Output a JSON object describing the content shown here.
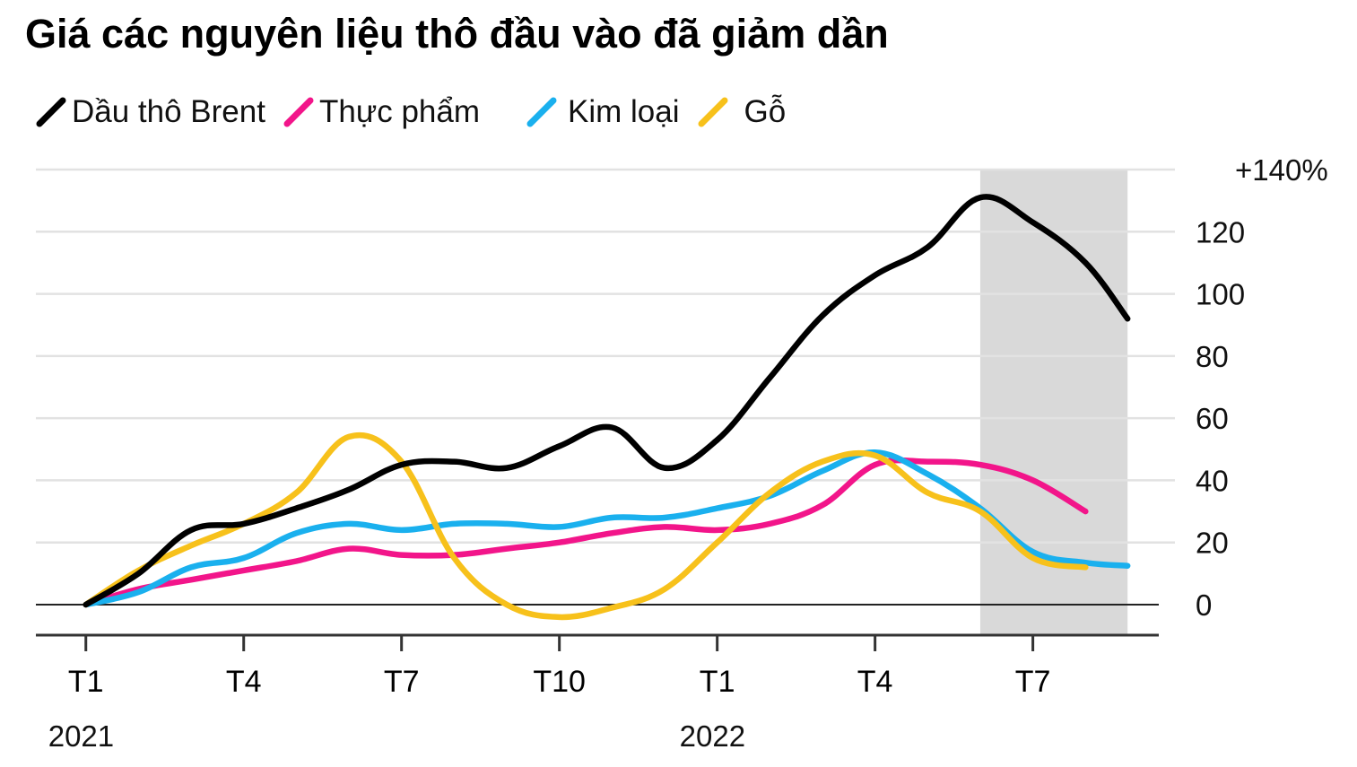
{
  "title": "Giá các nguyên liệu thô đầu vào đã giảm dần",
  "chart_data": {
    "type": "line",
    "title": "Giá các nguyên liệu thô đầu vào đã giảm dần",
    "xlabel": "",
    "ylabel": "",
    "x_unit": "month index (0 = T1 2021)",
    "x_ticks": [
      {
        "x": 0,
        "label": "T1"
      },
      {
        "x": 3,
        "label": "T4"
      },
      {
        "x": 6,
        "label": "T7"
      },
      {
        "x": 9,
        "label": "T10"
      },
      {
        "x": 12,
        "label": "T1"
      },
      {
        "x": 15,
        "label": "T4"
      },
      {
        "x": 18,
        "label": "T7"
      }
    ],
    "year_labels": [
      {
        "x": 0,
        "label": "2021"
      },
      {
        "x": 12,
        "label": "2022"
      }
    ],
    "y_ticks": [
      {
        "v": 140,
        "label": "+140%"
      },
      {
        "v": 120,
        "label": "120"
      },
      {
        "v": 100,
        "label": "100"
      },
      {
        "v": 80,
        "label": "80"
      },
      {
        "v": 60,
        "label": "60"
      },
      {
        "v": 40,
        "label": "40"
      },
      {
        "v": 20,
        "label": "20"
      },
      {
        "v": 0,
        "label": "0"
      }
    ],
    "ylim": [
      -10,
      140
    ],
    "xlim": [
      -0.95,
      20.7
    ],
    "grid": true,
    "legend": "top-left",
    "shaded_region": {
      "x0": 17,
      "x1": 19.8,
      "color": "#d9d9d9"
    },
    "series": [
      {
        "name": "Dầu thô Brent",
        "color": "#000000",
        "points": [
          [
            0,
            0
          ],
          [
            1,
            10
          ],
          [
            2,
            24
          ],
          [
            3,
            26
          ],
          [
            4,
            31
          ],
          [
            5,
            37
          ],
          [
            6,
            45
          ],
          [
            7,
            46
          ],
          [
            8,
            44
          ],
          [
            9,
            51
          ],
          [
            10,
            57
          ],
          [
            11,
            44
          ],
          [
            12,
            53
          ],
          [
            13,
            73
          ],
          [
            14,
            93
          ],
          [
            15,
            106
          ],
          [
            16,
            115
          ],
          [
            17,
            131
          ],
          [
            18,
            123
          ],
          [
            19,
            110
          ],
          [
            19.8,
            92
          ]
        ]
      },
      {
        "name": "Thực phẩm",
        "color": "#f2158a",
        "points": [
          [
            0,
            0
          ],
          [
            1,
            5
          ],
          [
            2,
            8
          ],
          [
            3,
            11
          ],
          [
            4,
            14
          ],
          [
            5,
            18
          ],
          [
            6,
            16
          ],
          [
            7,
            16
          ],
          [
            8,
            18
          ],
          [
            9,
            20
          ],
          [
            10,
            23
          ],
          [
            11,
            25
          ],
          [
            12,
            24
          ],
          [
            13,
            26
          ],
          [
            14,
            32
          ],
          [
            15,
            45
          ],
          [
            16,
            46
          ],
          [
            17,
            45
          ],
          [
            18,
            40
          ],
          [
            19,
            30
          ]
        ]
      },
      {
        "name": "Kim loại",
        "color": "#1ab0ee",
        "points": [
          [
            0,
            0
          ],
          [
            1,
            4
          ],
          [
            2,
            12
          ],
          [
            3,
            15
          ],
          [
            4,
            23
          ],
          [
            5,
            26
          ],
          [
            6,
            24
          ],
          [
            7,
            26
          ],
          [
            8,
            26
          ],
          [
            9,
            25
          ],
          [
            10,
            28
          ],
          [
            11,
            28
          ],
          [
            12,
            31
          ],
          [
            13,
            35
          ],
          [
            14,
            43
          ],
          [
            15,
            49
          ],
          [
            16,
            42
          ],
          [
            17,
            31
          ],
          [
            18,
            17
          ],
          [
            19,
            13.5
          ],
          [
            19.8,
            12.5
          ]
        ]
      },
      {
        "name": "Gỗ",
        "color": "#f7c11b",
        "points": [
          [
            0,
            0
          ],
          [
            1,
            11
          ],
          [
            2,
            19
          ],
          [
            3,
            26
          ],
          [
            4,
            36
          ],
          [
            5,
            54
          ],
          [
            6,
            46
          ],
          [
            7,
            15
          ],
          [
            8,
            0
          ],
          [
            9,
            -4
          ],
          [
            10,
            -1
          ],
          [
            11,
            5
          ],
          [
            12,
            20
          ],
          [
            13,
            36
          ],
          [
            14,
            46
          ],
          [
            15,
            48
          ],
          [
            16,
            36
          ],
          [
            17,
            30
          ],
          [
            18,
            15
          ],
          [
            19,
            12
          ]
        ]
      }
    ]
  },
  "legend_items": [
    {
      "label": "Dầu thô Brent",
      "color": "#000000",
      "icon": "black-line-swatch-icon"
    },
    {
      "label": "Thực phẩm",
      "color": "#f2158a",
      "icon": "pink-line-swatch-icon"
    },
    {
      "label": "Kim loại",
      "color": "#1ab0ee",
      "icon": "blue-line-swatch-icon"
    },
    {
      "label": "Gỗ",
      "color": "#f7c11b",
      "icon": "yellow-line-swatch-icon"
    }
  ]
}
